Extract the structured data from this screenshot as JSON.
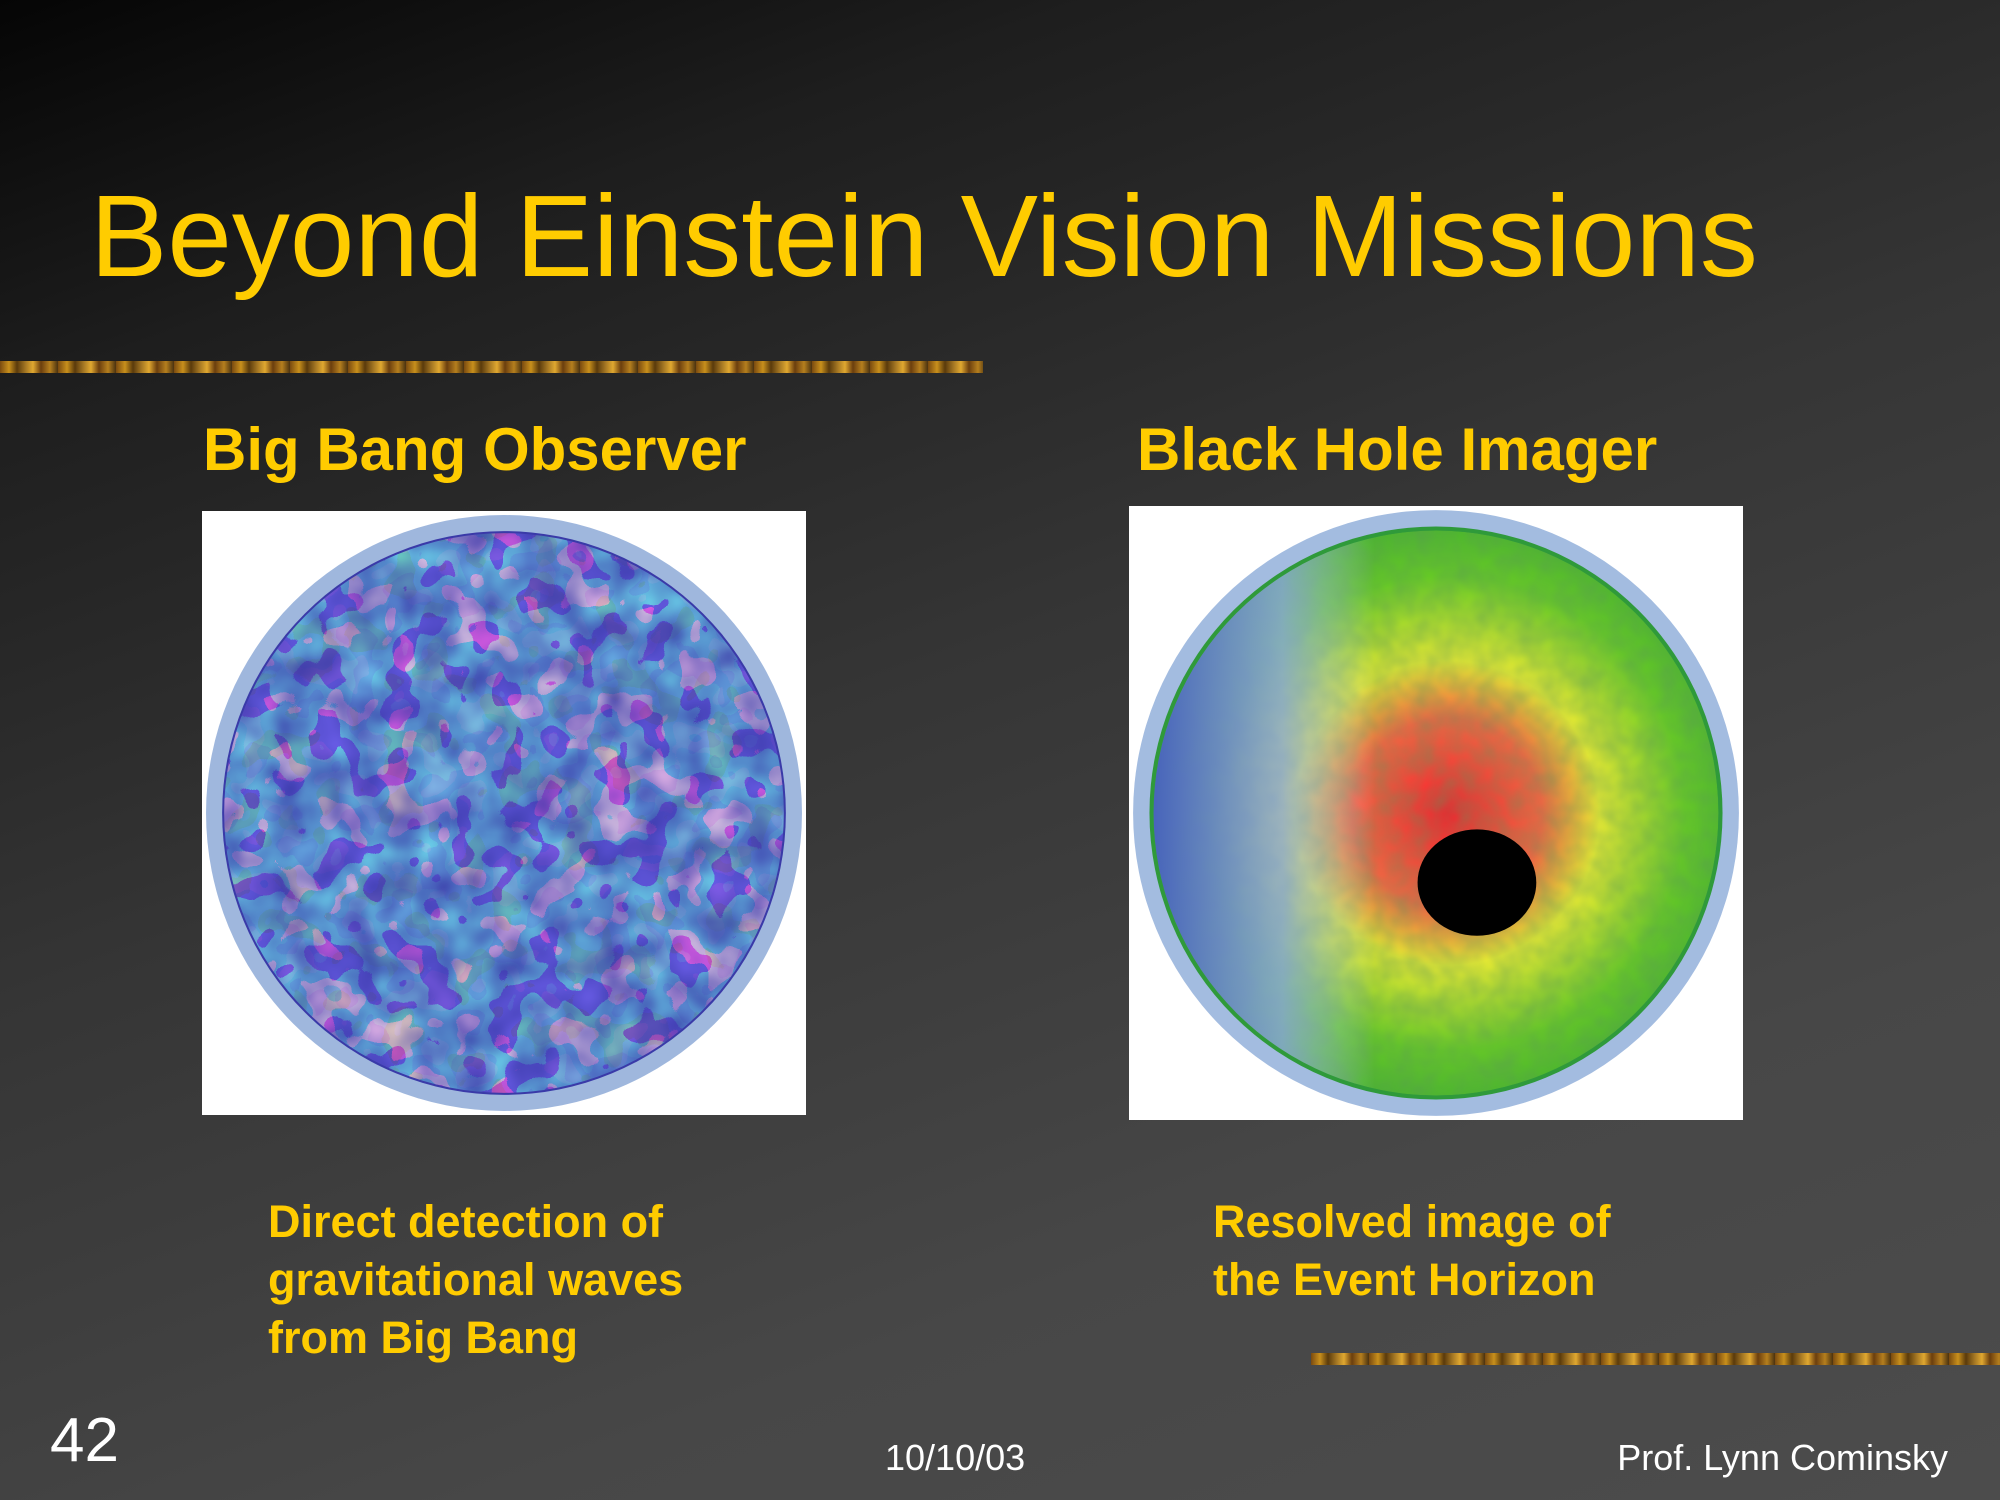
{
  "slide": {
    "title": "Beyond Einstein Vision Missions",
    "left": {
      "heading": "Big Bang Observer",
      "image_icon": "gravitational-wave-sky-map",
      "caption_lines": [
        "Direct detection of",
        "gravitational waves",
        "from Big Bang"
      ]
    },
    "right": {
      "heading": "Black Hole Imager",
      "image_icon": "black-hole-event-horizon-image",
      "caption_lines": [
        "Resolved image of",
        "the Event Horizon"
      ]
    },
    "footer": {
      "slide_number": "42",
      "date": "10/10/03",
      "author": "Prof. Lynn Cominsky"
    },
    "colors": {
      "accent": "#ffcc00",
      "footer_text": "#ffffff"
    }
  }
}
